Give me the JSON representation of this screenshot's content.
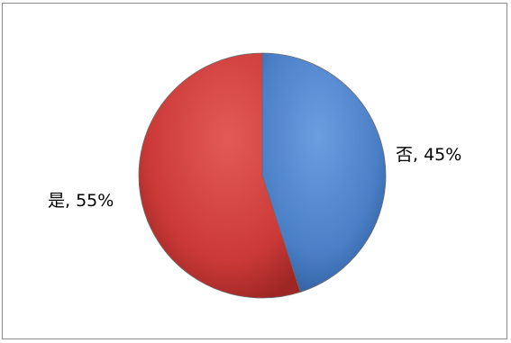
{
  "chart_data": {
    "type": "pie",
    "categories": [
      "否",
      "是"
    ],
    "values": [
      45,
      55
    ],
    "data_labels": [
      "否, 45%",
      "是, 55%"
    ],
    "colors": [
      "#4a7fc7",
      "#cc3a38"
    ],
    "legend": "none"
  }
}
